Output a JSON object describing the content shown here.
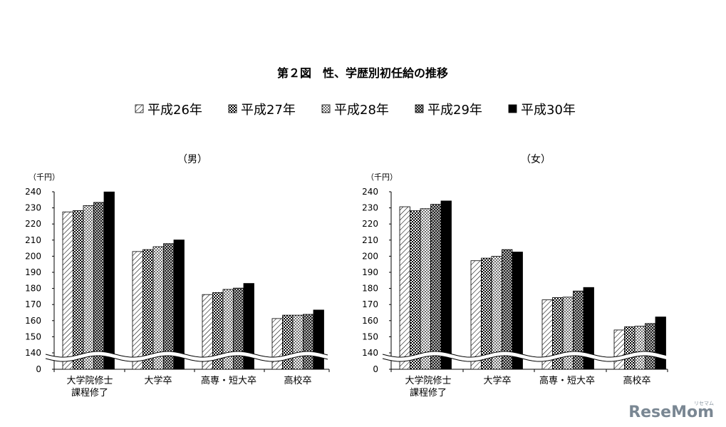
{
  "title": "第２図　性、学歴別初任給の推移",
  "legend": [
    {
      "label": "平成26年",
      "pattern": "diag"
    },
    {
      "label": "平成27年",
      "pattern": "grid"
    },
    {
      "label": "平成28年",
      "pattern": "dots"
    },
    {
      "label": "平成29年",
      "pattern": "xcross"
    },
    {
      "label": "平成30年",
      "pattern": "solid"
    }
  ],
  "watermark": {
    "brand": "ReseMom",
    "sub": "リセマム"
  },
  "chart_data": [
    {
      "type": "bar",
      "title": "（男）",
      "ylabel": "（千円）",
      "y_ticks": [
        "240",
        "230",
        "220",
        "210",
        "200",
        "190",
        "180",
        "170",
        "160",
        "150",
        "140",
        "0"
      ],
      "axis_break": true,
      "ylim": [
        140,
        240
      ],
      "categories": [
        [
          "大学院修士",
          "課程修了"
        ],
        [
          "大学卒"
        ],
        [
          "高専・短大卒"
        ],
        [
          "高校卒"
        ]
      ],
      "series": [
        {
          "name": "平成26年",
          "values": [
            227.5,
            202.9,
            176.2,
            161.3
          ]
        },
        {
          "name": "平成27年",
          "values": [
            228.3,
            204.1,
            177.4,
            163.4
          ]
        },
        {
          "name": "平成28年",
          "values": [
            231.4,
            205.9,
            179.4,
            163.4
          ]
        },
        {
          "name": "平成29年",
          "values": [
            233.4,
            207.8,
            180.2,
            163.9
          ]
        },
        {
          "name": "平成30年",
          "values": [
            239.9,
            210.1,
            183.1,
            166.6
          ]
        }
      ]
    },
    {
      "type": "bar",
      "title": "（女）",
      "ylabel": "（千円）",
      "y_ticks": [
        "240",
        "230",
        "220",
        "210",
        "200",
        "190",
        "180",
        "170",
        "160",
        "150",
        "140",
        "0"
      ],
      "axis_break": true,
      "ylim": [
        140,
        240
      ],
      "categories": [
        [
          "大学院修士",
          "課程修了"
        ],
        [
          "大学卒"
        ],
        [
          "高専・短大卒"
        ],
        [
          "高校卒"
        ]
      ],
      "series": [
        {
          "name": "平成26年",
          "values": [
            230.7,
            197.2,
            172.9,
            154.2
          ]
        },
        {
          "name": "平成27年",
          "values": [
            228.2,
            198.8,
            174.3,
            156.2
          ]
        },
        {
          "name": "平成28年",
          "values": [
            229.5,
            200.0,
            174.6,
            156.6
          ]
        },
        {
          "name": "平成29年",
          "values": [
            232.2,
            204.1,
            178.4,
            158.2
          ]
        },
        {
          "name": "平成30年",
          "values": [
            234.3,
            202.6,
            180.6,
            162.3
          ]
        }
      ]
    }
  ]
}
